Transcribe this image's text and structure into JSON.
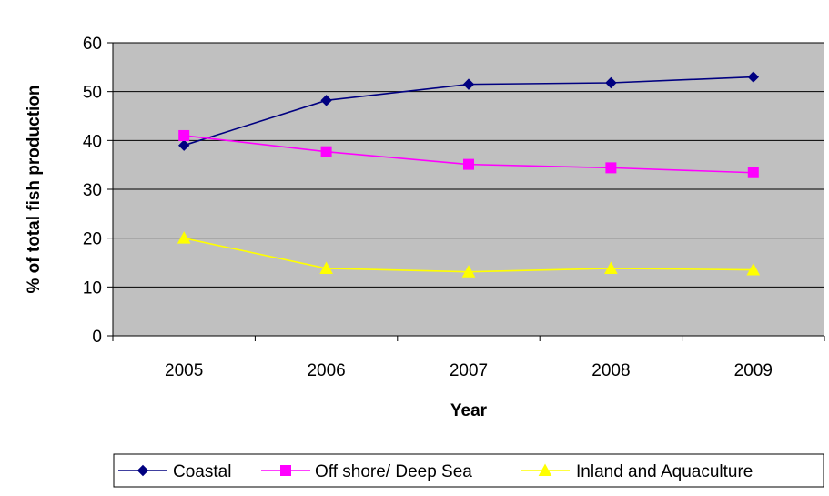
{
  "chart_data": {
    "type": "line",
    "title": "",
    "xlabel": "Year",
    "ylabel": "% of total fish production",
    "categories": [
      "2005",
      "2006",
      "2007",
      "2008",
      "2009"
    ],
    "ylim": [
      0,
      60
    ],
    "yticks": [
      0,
      10,
      20,
      30,
      40,
      50,
      60
    ],
    "grid": true,
    "legend_position": "bottom",
    "plot_background": "#C0C0C0",
    "series": [
      {
        "name": "Coastal",
        "values": [
          39,
          48.2,
          51.5,
          51.8,
          53
        ],
        "color": "#000080",
        "marker": "diamond"
      },
      {
        "name": "Off shore/ Deep Sea",
        "values": [
          41,
          37.7,
          35.1,
          34.4,
          33.4
        ],
        "color": "#FF00FF",
        "marker": "square"
      },
      {
        "name": "Inland and  Aquaculture",
        "values": [
          20,
          13.8,
          13.1,
          13.8,
          13.5
        ],
        "color": "#FFFF00",
        "marker": "triangle"
      }
    ]
  }
}
